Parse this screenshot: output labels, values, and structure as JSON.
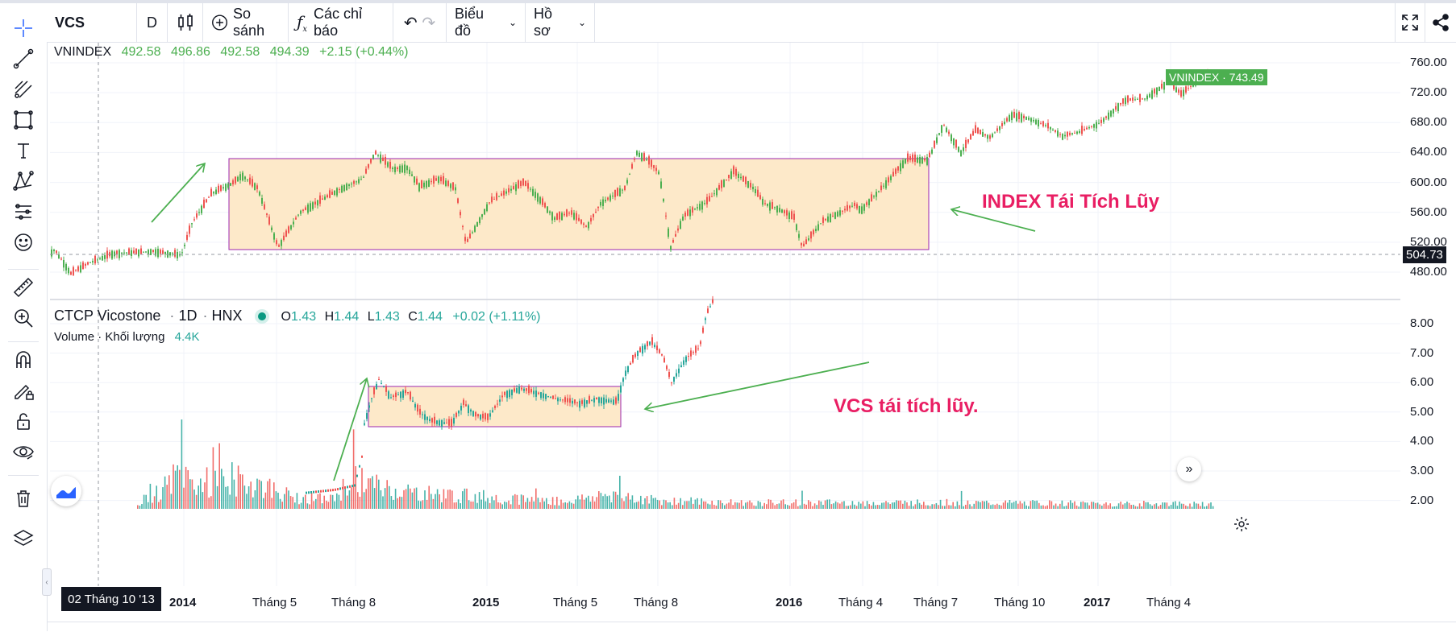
{
  "header": {
    "symbol": "VCS",
    "interval": "D",
    "compare_label": "So sánh",
    "indicators_label": "Các chỉ báo",
    "chart_menu_label": "Biểu đồ",
    "profile_menu_label": "Hồ sơ"
  },
  "icons": [
    "crosshair-icon",
    "trend-line-icon",
    "fib-icon",
    "rectangle-icon",
    "text-icon",
    "pattern-icon",
    "forecast-icon",
    "emoji-icon",
    "ruler-icon",
    "zoom-in-icon",
    "magnet-icon",
    "lock-draw-icon",
    "lock-icon",
    "eye-icon",
    "trash-icon",
    "layers-icon",
    "candles-icon",
    "plus-circle-icon",
    "fx-icon",
    "undo-icon",
    "redo-icon",
    "fullscreen-icon",
    "share-icon",
    "settings-icon",
    "scroll-right-icon",
    "logo-icon"
  ],
  "upper_pane": {
    "legend": {
      "name": "VNINDEX",
      "open": "492.58",
      "high": "496.86",
      "low": "492.58",
      "close": "494.39",
      "change": "+2.15 (+0.44%)"
    },
    "last_price_tag": "VNINDEX · 743.49",
    "crosshair_price": "504.73",
    "axis_ticks": [
      "760.00",
      "720.00",
      "680.00",
      "640.00",
      "600.00",
      "560.00",
      "520.00",
      "480.00"
    ],
    "annotation": "INDEX Tái Tích Lũy"
  },
  "lower_pane": {
    "legend": {
      "name": "CTCP Vicostone",
      "interval": "1D",
      "exchange": "HNX",
      "o": "O",
      "o_val": "1.43",
      "h": "H",
      "h_val": "1.44",
      "l": "L",
      "l_val": "1.43",
      "c": "C",
      "c_val": "1.44",
      "change": "+0.02 (+1.11%)"
    },
    "volume_label": "Volume · Khối lượng",
    "volume_value": "4.4K",
    "axis_ticks": [
      "8.00",
      "7.00",
      "6.00",
      "5.00",
      "4.00",
      "3.00",
      "2.00"
    ],
    "annotation": "VCS tái tích lũy."
  },
  "time_axis": {
    "crosshair_date": "02 Tháng 10 '13",
    "labels": [
      {
        "text": "2014",
        "bold": true
      },
      {
        "text": "Tháng 5",
        "bold": false
      },
      {
        "text": "Tháng 8",
        "bold": false
      },
      {
        "text": "2015",
        "bold": true
      },
      {
        "text": "Tháng 5",
        "bold": false
      },
      {
        "text": "Tháng 8",
        "bold": false
      },
      {
        "text": "2016",
        "bold": true
      },
      {
        "text": "Tháng 4",
        "bold": false
      },
      {
        "text": "Tháng 7",
        "bold": false
      },
      {
        "text": "Tháng 10",
        "bold": false
      },
      {
        "text": "2017",
        "bold": true
      },
      {
        "text": "Tháng 4",
        "bold": false
      }
    ]
  },
  "colors": {
    "up": "#26a69a",
    "down": "#ef5350",
    "index_up": "#4caf50",
    "box_fill": "#fde9c9",
    "box_border": "#9c27b0",
    "arrow": "#4caf50",
    "annotation": "#e91e63"
  }
}
